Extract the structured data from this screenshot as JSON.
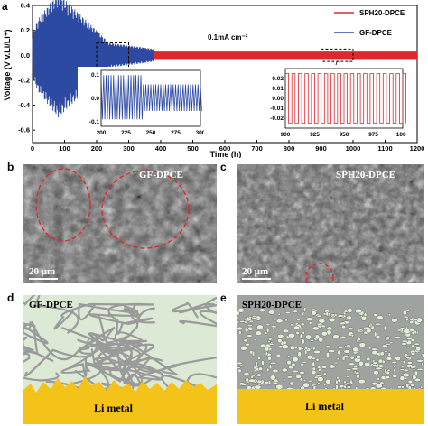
{
  "panels": {
    "a": "a",
    "b": "b",
    "c": "c",
    "d": "d",
    "e": "e"
  },
  "colors": {
    "sph20": "#e0262f",
    "gf": "#2d4aa3",
    "li_metal": "#f4c31a",
    "gf_bg": "#dce9d5",
    "fiber": "#9a9a9a"
  },
  "chart_data": [
    {
      "type": "line",
      "title": "",
      "xlabel": "Time (h)",
      "ylabel": "Voltage (V v.Li/Li⁺)",
      "xlim": [
        0,
        1200
      ],
      "ylim": [
        -0.7,
        0.4
      ],
      "xticks": [
        0,
        100,
        200,
        300,
        400,
        500,
        600,
        700,
        800,
        900,
        1000,
        1100,
        1200
      ],
      "yticks": [
        -0.6,
        -0.4,
        -0.2,
        0.0,
        0.2,
        0.4
      ],
      "ytick_labels": [
        "-0.6",
        "-0.4",
        "-0.2",
        "0.0",
        "0.2",
        "0.4"
      ],
      "annotation": "0.1mA cm⁻²",
      "legend_position": "top-right",
      "series": [
        {
          "name": "SPH20-DPCE",
          "amplitude_range": [
            0.02,
            0.03
          ],
          "time_range": [
            0,
            1200
          ]
        },
        {
          "name": "GF-DPCE",
          "amplitude_envelope": [
            [
              0,
              0.18
            ],
            [
              20,
              0.3
            ],
            [
              80,
              0.5
            ],
            [
              120,
              0.4
            ],
            [
              200,
              0.2
            ],
            [
              240,
              0.1
            ],
            [
              300,
              0.08
            ],
            [
              380,
              0.05
            ]
          ],
          "time_range": [
            0,
            380
          ]
        }
      ]
    },
    {
      "type": "line",
      "title": "",
      "xlim": [
        200,
        300
      ],
      "ylim": [
        -0.12,
        0.12
      ],
      "xticks": [
        200,
        225,
        250,
        275,
        300
      ],
      "yticks": [
        -0.1,
        0.0,
        0.1
      ],
      "ytick_labels": [
        "-0.1",
        "0.0",
        "0.1"
      ],
      "series": [
        {
          "name": "GF-DPCE zoom",
          "amplitude_envelope": [
            [
              200,
              0.1
            ],
            [
              240,
              0.1
            ],
            [
              243,
              0.06
            ],
            [
              300,
              0.06
            ]
          ]
        }
      ]
    },
    {
      "type": "line",
      "title": "",
      "xlim": [
        900,
        1000
      ],
      "ylim": [
        -0.03,
        0.03
      ],
      "xticks": [
        900,
        925,
        950,
        975,
        1000
      ],
      "yticks": [
        -0.02,
        -0.01,
        0.0,
        0.01,
        0.02
      ],
      "ytick_labels": [
        "-0.02",
        "-0.01",
        "0.00",
        "0.01",
        "0.02"
      ],
      "series": [
        {
          "name": "SPH20-DPCE zoom",
          "amplitude": 0.025
        }
      ]
    }
  ],
  "sem": {
    "left_title": "GF-DPCE",
    "right_title": "SPH20-DPCE",
    "scale": "20 μm"
  },
  "schematic": {
    "left_title": "GF-DPCE",
    "right_title": "SPH20-DPCE",
    "metal": "Li metal"
  }
}
